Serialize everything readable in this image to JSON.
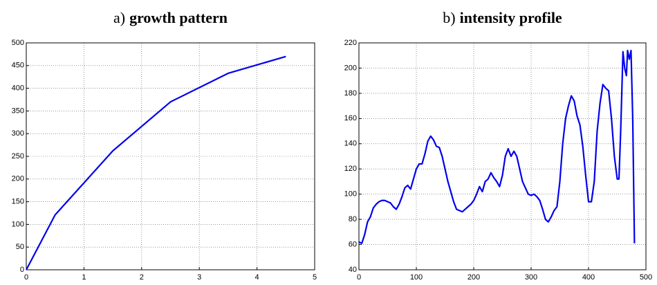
{
  "chart_data": [
    {
      "type": "line",
      "panel": "a)",
      "title": "growth pattern",
      "x": [
        0,
        0.5,
        1.5,
        2.5,
        3.5,
        4.5
      ],
      "series": [
        {
          "color": "#0000ee",
          "values": [
            0,
            121,
            262,
            370,
            433,
            470
          ]
        }
      ],
      "xlim": [
        0,
        5
      ],
      "xticks": [
        0,
        1,
        2,
        3,
        4,
        5
      ],
      "ylim": [
        0,
        500
      ],
      "yticks": [
        0,
        50,
        100,
        150,
        200,
        250,
        300,
        350,
        400,
        450,
        500
      ],
      "grid": true
    },
    {
      "type": "line",
      "panel": "b)",
      "title": "intensity profile",
      "x": [
        0,
        5,
        10,
        15,
        20,
        25,
        30,
        35,
        40,
        45,
        50,
        55,
        60,
        65,
        70,
        75,
        80,
        85,
        90,
        95,
        100,
        105,
        110,
        115,
        120,
        125,
        130,
        135,
        140,
        145,
        150,
        155,
        160,
        165,
        170,
        175,
        180,
        185,
        190,
        195,
        200,
        205,
        210,
        215,
        220,
        225,
        230,
        235,
        240,
        245,
        250,
        255,
        260,
        265,
        270,
        275,
        280,
        285,
        290,
        295,
        300,
        305,
        310,
        315,
        320,
        325,
        330,
        335,
        340,
        345,
        350,
        355,
        360,
        365,
        370,
        375,
        380,
        385,
        390,
        395,
        400,
        405,
        410,
        415,
        420,
        425,
        430,
        435,
        440,
        445,
        450,
        453,
        456,
        460,
        463,
        466,
        468,
        471,
        474,
        477,
        480
      ],
      "series": [
        {
          "color": "#0000ee",
          "values": [
            62,
            61,
            68,
            78,
            82,
            89,
            92,
            94,
            95,
            95,
            94,
            93,
            90,
            88,
            92,
            98,
            105,
            107,
            104,
            112,
            120,
            124,
            124,
            132,
            142,
            146,
            143,
            138,
            137,
            130,
            120,
            110,
            102,
            94,
            88,
            87,
            86,
            88,
            90,
            92,
            95,
            100,
            106,
            102,
            110,
            112,
            117,
            113,
            110,
            106,
            115,
            130,
            136,
            130,
            134,
            130,
            120,
            110,
            105,
            100,
            99,
            100,
            98,
            95,
            88,
            80,
            78,
            82,
            87,
            90,
            110,
            140,
            160,
            170,
            178,
            174,
            162,
            155,
            138,
            115,
            94,
            94,
            110,
            150,
            172,
            187,
            184,
            182,
            160,
            130,
            112,
            112,
            150,
            213,
            200,
            194,
            214,
            207,
            214,
            160,
            61
          ]
        }
      ],
      "xlim": [
        0,
        500
      ],
      "xticks": [
        0,
        100,
        200,
        300,
        400,
        500
      ],
      "ylim": [
        40,
        220
      ],
      "yticks": [
        40,
        60,
        80,
        100,
        120,
        140,
        160,
        180,
        200,
        220
      ],
      "grid": true
    }
  ]
}
